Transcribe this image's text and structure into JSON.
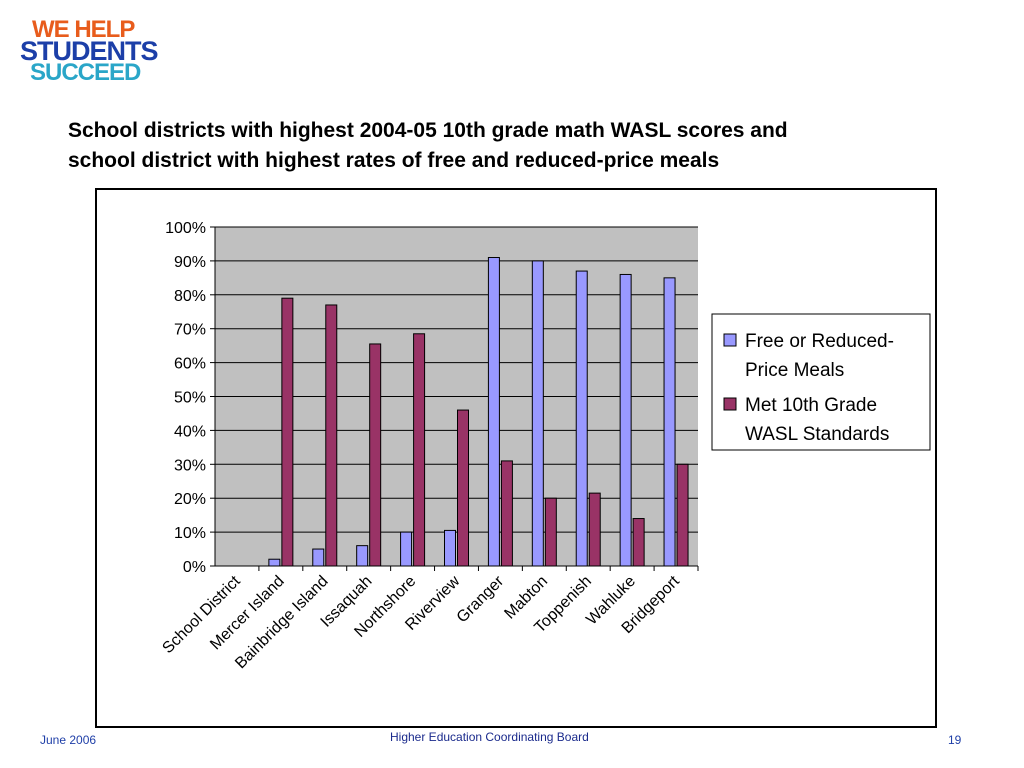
{
  "logo": {
    "line1": "WE HELP",
    "line2": "STUDENTS",
    "line3": "SUCCEED"
  },
  "title": {
    "line1": "School districts with highest 2004-05 10th grade math WASL scores and",
    "line2": "school district with highest rates of free and reduced-price meals"
  },
  "footer": {
    "date": "June 2006",
    "org": "Higher Education Coordinating Board",
    "page": "19"
  },
  "colors": {
    "plot_bg": "#c0c0c0",
    "series1": "#9999ff",
    "series2": "#993366"
  },
  "chart_data": {
    "type": "bar",
    "categories": [
      "School District",
      "Mercer Island",
      "Bainbridge Island",
      "Issaquah",
      "Northshore",
      "Riverview",
      "Granger",
      "Mabton",
      "Toppenish",
      "Wahluke",
      "Bridgeport"
    ],
    "series": [
      {
        "name": "Free or Reduced-Price Meals",
        "legend_lines": [
          "Free or Reduced-",
          "Price Meals"
        ],
        "values": [
          null,
          2,
          5,
          6,
          10,
          10.5,
          91,
          90,
          87,
          86,
          85
        ]
      },
      {
        "name": "Met 10th Grade WASL Standards",
        "legend_lines": [
          "Met 10th Grade",
          "WASL Standards"
        ],
        "values": [
          null,
          79,
          77,
          65.5,
          68.5,
          46,
          31,
          20,
          21.5,
          14,
          30
        ]
      }
    ],
    "yticks": [
      "0%",
      "10%",
      "20%",
      "30%",
      "40%",
      "50%",
      "60%",
      "70%",
      "80%",
      "90%",
      "100%"
    ],
    "ylim": [
      0,
      100
    ],
    "grid": true,
    "legend_position": "right"
  }
}
